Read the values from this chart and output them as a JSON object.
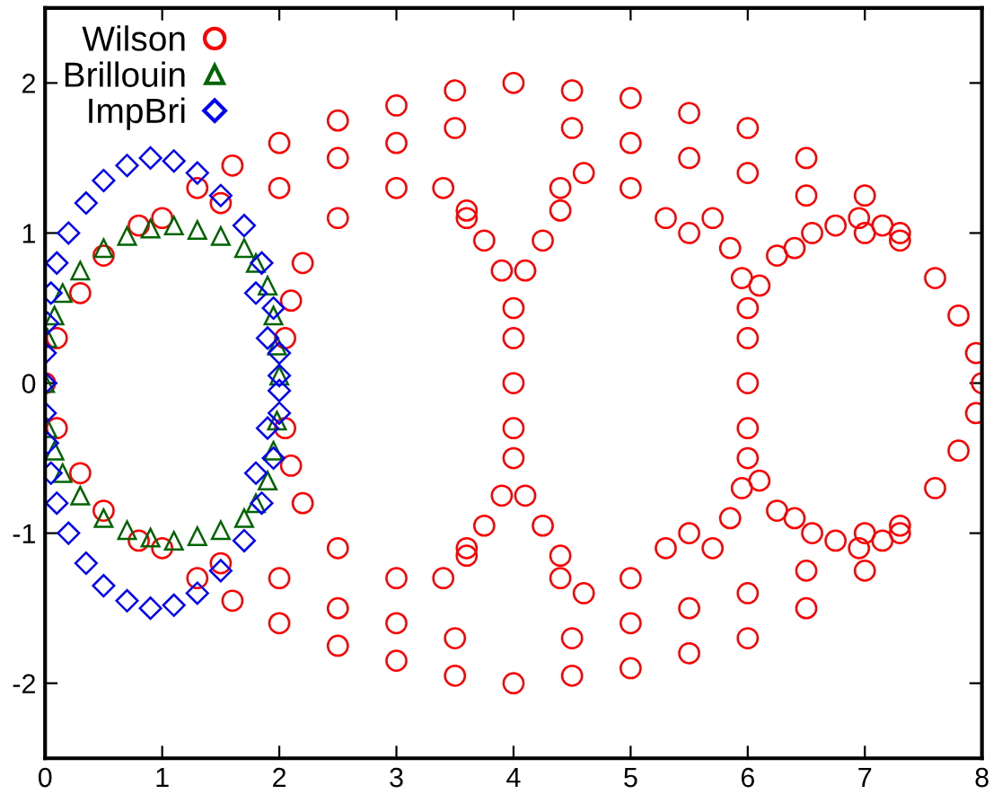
{
  "chart_data": {
    "type": "scatter",
    "xlim": [
      0,
      8
    ],
    "ylim": [
      -2.5,
      2.5
    ],
    "xticks": [
      0,
      1,
      2,
      3,
      4,
      5,
      6,
      7,
      8
    ],
    "yticks": [
      -2,
      -1,
      0,
      1,
      2
    ],
    "grid": false,
    "legend": "top left",
    "series": [
      {
        "name": "Wilson",
        "color": "#ff0000",
        "marker": "circle",
        "x": [
          0,
          0.1,
          0.3,
          0.5,
          0.8,
          1.0,
          1.3,
          1.6,
          2.0,
          2.5,
          3.0,
          3.5,
          4.0,
          4.5,
          5.0,
          5.5,
          6.0,
          6.5,
          7.0,
          7.3,
          7.6,
          7.8,
          7.95,
          8,
          1.5,
          2.0,
          2.5,
          3.0,
          3.5,
          4.5,
          5.0,
          5.5,
          6.0,
          6.5,
          7.0,
          2.2,
          2.5,
          3.0,
          3.4,
          3.6,
          4.4,
          4.6,
          5.0,
          5.3,
          5.5,
          4,
          4,
          4,
          3.9,
          4.1,
          3.75,
          4.25,
          3.6,
          4.4,
          6,
          6,
          6,
          5.95,
          5.85,
          5.7,
          6.1,
          6.25,
          6.4,
          6.55,
          6.75,
          6.95,
          7.15,
          7.3,
          2.05,
          2.1,
          0.1,
          0.3,
          0.5,
          0.8,
          1.0,
          1.3,
          1.6,
          2.0,
          2.5,
          3.0,
          3.5,
          4.0,
          4.5,
          5.0,
          5.5,
          6.0,
          6.5,
          7.0,
          7.3,
          7.6,
          7.8,
          7.95,
          1.5,
          2.0,
          2.5,
          3.0,
          3.5,
          4.5,
          5.0,
          5.5,
          6.0,
          6.5,
          7.0,
          2.2,
          2.5,
          3.0,
          3.4,
          3.6,
          4.4,
          4.6,
          5.0,
          5.3,
          5.5,
          4,
          4,
          3.9,
          4.1,
          3.75,
          4.25,
          3.6,
          4.4,
          6,
          6,
          5.95,
          5.85,
          5.7,
          6.1,
          6.25,
          6.4,
          6.55,
          6.75,
          6.95,
          7.15,
          7.3,
          2.05,
          2.1
        ],
        "values": [
          0,
          0.3,
          0.6,
          0.85,
          1.05,
          1.1,
          1.3,
          1.45,
          1.6,
          1.75,
          1.85,
          1.95,
          2.0,
          1.95,
          1.9,
          1.8,
          1.7,
          1.5,
          1.25,
          1.0,
          0.7,
          0.45,
          0.2,
          0,
          1.2,
          1.3,
          1.5,
          1.6,
          1.7,
          1.7,
          1.6,
          1.5,
          1.4,
          1.25,
          1.0,
          0.8,
          1.1,
          1.3,
          1.3,
          1.1,
          1.3,
          1.4,
          1.3,
          1.1,
          1.0,
          0,
          0.3,
          0.5,
          0.75,
          0.75,
          0.95,
          0.95,
          1.15,
          1.15,
          0,
          0.3,
          0.5,
          0.7,
          0.9,
          1.1,
          0.65,
          0.85,
          0.9,
          1.0,
          1.05,
          1.1,
          1.05,
          0.95,
          0.3,
          0.55,
          -0.3,
          -0.6,
          -0.85,
          -1.05,
          -1.1,
          -1.3,
          -1.45,
          -1.6,
          -1.75,
          -1.85,
          -1.95,
          -2.0,
          -1.95,
          -1.9,
          -1.8,
          -1.7,
          -1.5,
          -1.25,
          -1.0,
          -0.7,
          -0.45,
          -0.2,
          -1.2,
          -1.3,
          -1.5,
          -1.6,
          -1.7,
          -1.7,
          -1.6,
          -1.5,
          -1.4,
          -1.25,
          -1.0,
          -0.8,
          -1.1,
          -1.3,
          -1.3,
          -1.1,
          -1.3,
          -1.4,
          -1.3,
          -1.1,
          -1.0,
          -0.3,
          -0.5,
          -0.75,
          -0.75,
          -0.95,
          -0.95,
          -1.15,
          -1.15,
          -0.3,
          -0.5,
          -0.7,
          -0.9,
          -1.1,
          -0.65,
          -0.85,
          -0.9,
          -1.0,
          -1.05,
          -1.1,
          -1.05,
          -0.95,
          -0.3,
          -0.55
        ]
      },
      {
        "name": "Brillouin",
        "color": "#006400",
        "marker": "triangle",
        "x": [
          0,
          0.02,
          0.08,
          0.15,
          0.3,
          0.5,
          0.7,
          0.9,
          1.1,
          1.3,
          1.5,
          1.7,
          1.8,
          1.9,
          1.95,
          1.98,
          2.0,
          0.02,
          0.08,
          0.15,
          0.3,
          0.5,
          0.7,
          0.9,
          1.1,
          1.3,
          1.5,
          1.7,
          1.8,
          1.9,
          1.95,
          1.98
        ],
        "values": [
          0,
          0.3,
          0.45,
          0.6,
          0.75,
          0.9,
          0.98,
          1.03,
          1.05,
          1.02,
          0.98,
          0.9,
          0.8,
          0.65,
          0.45,
          0.25,
          0.05,
          -0.3,
          -0.45,
          -0.6,
          -0.75,
          -0.9,
          -0.98,
          -1.03,
          -1.05,
          -1.02,
          -0.98,
          -0.9,
          -0.8,
          -0.65,
          -0.45,
          -0.25
        ]
      },
      {
        "name": "ImpBri",
        "color": "#0000ff",
        "marker": "diamond",
        "x": [
          0,
          0,
          0.02,
          0.05,
          0.1,
          0.2,
          0.35,
          0.5,
          0.7,
          0.9,
          1.1,
          1.3,
          1.5,
          1.7,
          1.85,
          1.95,
          2.0,
          2.0,
          1.9,
          1.8,
          0,
          0.02,
          0.05,
          0.1,
          0.2,
          0.35,
          0.5,
          0.7,
          0.9,
          1.1,
          1.3,
          1.5,
          1.7,
          1.85,
          1.95,
          2.0,
          2.0,
          1.9,
          1.8
        ],
        "values": [
          0,
          0.2,
          0.4,
          0.6,
          0.8,
          1.0,
          1.2,
          1.35,
          1.45,
          1.5,
          1.48,
          1.4,
          1.25,
          1.05,
          0.8,
          0.5,
          0.2,
          0.05,
          0.3,
          0.6,
          -0.2,
          -0.4,
          -0.6,
          -0.8,
          -1.0,
          -1.2,
          -1.35,
          -1.45,
          -1.5,
          -1.48,
          -1.4,
          -1.25,
          -1.05,
          -0.8,
          -0.5,
          -0.2,
          -0.05,
          -0.3,
          -0.6
        ]
      }
    ]
  }
}
